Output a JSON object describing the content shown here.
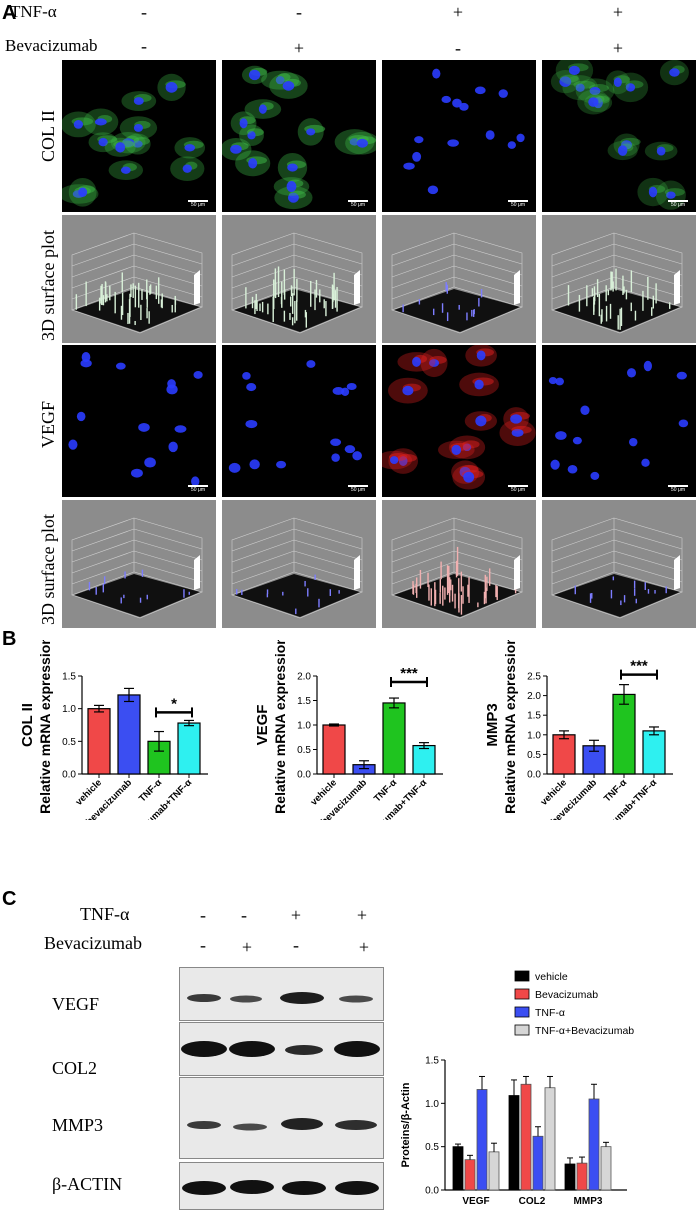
{
  "panels": {
    "a": "A",
    "b": "B",
    "c": "C"
  },
  "treatments": {
    "tnf_label": "TNF-α",
    "bev_label": "Bevacizumab",
    "tnf_signs": [
      "-",
      "-",
      "+",
      "+"
    ],
    "bev_signs": [
      "-",
      "+",
      "-",
      "+"
    ]
  },
  "panel_a": {
    "row_labels": [
      "COL II",
      "3D surface plot",
      "VEGF",
      "3D surface plot"
    ],
    "scale_bar": "50 μm",
    "colors": {
      "nucleus": "#2a3cff",
      "col2": "#3fbf4a",
      "vegf": "#e02020"
    }
  },
  "panel_c": {
    "tnf_label": "TNF-α",
    "bev_label": "Bevacizumab",
    "tnf_signs": [
      "-",
      "-",
      "+",
      "+"
    ],
    "bev_signs": [
      "-",
      "+",
      "-",
      "+"
    ],
    "blot_labels": [
      "VEGF",
      "COL2",
      "MMP3",
      "β-ACTIN"
    ]
  },
  "chart_data": [
    {
      "type": "bar",
      "ylabel_top": "COL II",
      "ylabel": "Relative mRNA expression",
      "categories": [
        "vehicle",
        "bevacizumab",
        "TNF-α",
        "bevacizumab+TNF-α"
      ],
      "values": [
        1.0,
        1.21,
        0.5,
        0.78
      ],
      "errors": [
        0.05,
        0.1,
        0.15,
        0.04
      ],
      "ylim": [
        0,
        1.5
      ],
      "yticks": [
        "0.0",
        "0.5",
        "1.0",
        "1.5"
      ],
      "colors": [
        "#f04848",
        "#3b4ef2",
        "#1fc41f",
        "#2ef0f0"
      ],
      "significance": {
        "between": [
          2,
          3
        ],
        "label": "*"
      }
    },
    {
      "type": "bar",
      "ylabel_top": "VEGF",
      "ylabel": "Relative mRNA expression",
      "categories": [
        "vehicle",
        "bevacizumab",
        "TNF-α",
        "bevacizumab+TNF-α"
      ],
      "values": [
        1.0,
        0.19,
        1.45,
        0.58
      ],
      "errors": [
        0.02,
        0.08,
        0.1,
        0.06
      ],
      "ylim": [
        0,
        2.0
      ],
      "yticks": [
        "0.0",
        "0.5",
        "1.0",
        "1.5",
        "2.0"
      ],
      "colors": [
        "#f04848",
        "#3b4ef2",
        "#1fc41f",
        "#2ef0f0"
      ],
      "significance": {
        "between": [
          2,
          3
        ],
        "label": "***"
      }
    },
    {
      "type": "bar",
      "ylabel_top": "MMP3",
      "ylabel": "Relative mRNA expression",
      "categories": [
        "vehicle",
        "bevacizumab",
        "TNF-α",
        "bevacizumab+TNF-α"
      ],
      "values": [
        1.0,
        0.72,
        2.03,
        1.1
      ],
      "errors": [
        0.1,
        0.14,
        0.25,
        0.1
      ],
      "ylim": [
        0,
        2.5
      ],
      "yticks": [
        "0.0",
        "0.5",
        "1.0",
        "1.5",
        "2.0",
        "2.5"
      ],
      "colors": [
        "#f04848",
        "#3b4ef2",
        "#1fc41f",
        "#2ef0f0"
      ],
      "significance": {
        "between": [
          2,
          3
        ],
        "label": "***"
      }
    },
    {
      "type": "bar",
      "ylabel": "Proteins/β-Actin",
      "categories": [
        "VEGF",
        "COL2",
        "MMP3"
      ],
      "ylim": [
        0,
        1.5
      ],
      "yticks": [
        "0.0",
        "0.5",
        "1.0",
        "1.5"
      ],
      "series": [
        {
          "name": "vehicle",
          "color": "#000000",
          "values": [
            0.5,
            1.09,
            0.3
          ],
          "errors": [
            0.03,
            0.18,
            0.07
          ]
        },
        {
          "name": "Bevacizumab",
          "color": "#f04848",
          "values": [
            0.35,
            1.22,
            0.31
          ],
          "errors": [
            0.05,
            0.09,
            0.07
          ]
        },
        {
          "name": "TNF-α",
          "color": "#3b4ef2",
          "values": [
            1.16,
            0.62,
            1.05
          ],
          "errors": [
            0.15,
            0.11,
            0.17
          ]
        },
        {
          "name": "TNF-α+Bevacizumab",
          "color": "#d6d6d6",
          "values": [
            0.44,
            1.18,
            0.5
          ],
          "errors": [
            0.1,
            0.13,
            0.05
          ]
        }
      ],
      "legend": "top-right"
    }
  ]
}
